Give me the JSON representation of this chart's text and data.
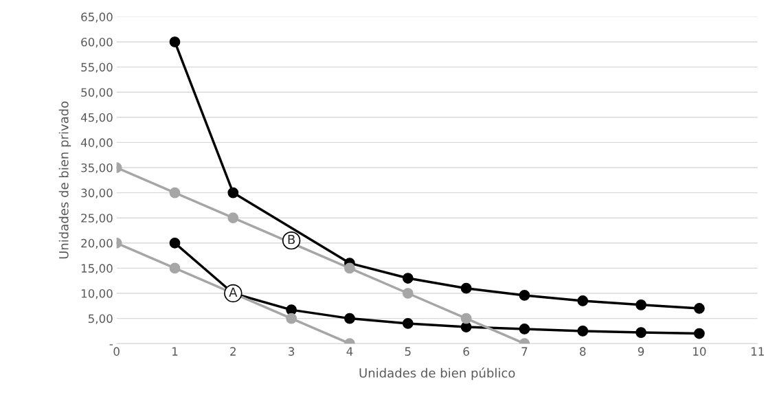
{
  "chart_data": {
    "type": "line",
    "xlabel": "Unidades de bien público",
    "ylabel": "Unidades de bien privado",
    "xlim": [
      0,
      11
    ],
    "xticks": [
      0,
      1,
      2,
      3,
      4,
      5,
      6,
      7,
      8,
      9,
      10,
      11
    ],
    "ylim": [
      0,
      65
    ],
    "yticks": [
      {
        "value": 0,
        "label": "-"
      },
      {
        "value": 5,
        "label": "5,00"
      },
      {
        "value": 10,
        "label": "10,00"
      },
      {
        "value": 15,
        "label": "15,00"
      },
      {
        "value": 20,
        "label": "20,00"
      },
      {
        "value": 25,
        "label": "25,00"
      },
      {
        "value": 30,
        "label": "30,00"
      },
      {
        "value": 35,
        "label": "35,00"
      },
      {
        "value": 40,
        "label": "40,00"
      },
      {
        "value": 45,
        "label": "45,00"
      },
      {
        "value": 50,
        "label": "50,00"
      },
      {
        "value": 55,
        "label": "55,00"
      },
      {
        "value": 60,
        "label": "60,00"
      },
      {
        "value": 65,
        "label": "65,00"
      }
    ],
    "grid": "y",
    "marker": "circle",
    "line_style": "solid",
    "legend": false,
    "series": [
      {
        "color": "#000000",
        "x": [
          1,
          2,
          3,
          4,
          5,
          6,
          7,
          8,
          9,
          10
        ],
        "values": [
          60,
          30,
          null,
          16,
          13,
          11,
          9.6,
          8.5,
          7.7,
          7
        ]
      },
      {
        "color": "#000000",
        "x": [
          1,
          2,
          3,
          4,
          5,
          6,
          7,
          8,
          9,
          10
        ],
        "values": [
          20,
          10,
          6.7,
          5,
          4,
          3.3,
          2.9,
          2.5,
          2.2,
          2
        ]
      },
      {
        "color": "#a6a6a6",
        "x": [
          0,
          1,
          2,
          3,
          4,
          5,
          6,
          7
        ],
        "values": [
          35,
          30,
          25,
          null,
          15,
          10,
          5,
          0
        ]
      },
      {
        "color": "#a6a6a6",
        "x": [
          0,
          1,
          2,
          3,
          4
        ],
        "values": [
          20,
          15,
          null,
          5,
          0
        ]
      }
    ],
    "annotations": [
      {
        "text": "B",
        "x": 3,
        "y": 20.5
      },
      {
        "text": "A",
        "x": 2,
        "y": 10
      }
    ]
  }
}
